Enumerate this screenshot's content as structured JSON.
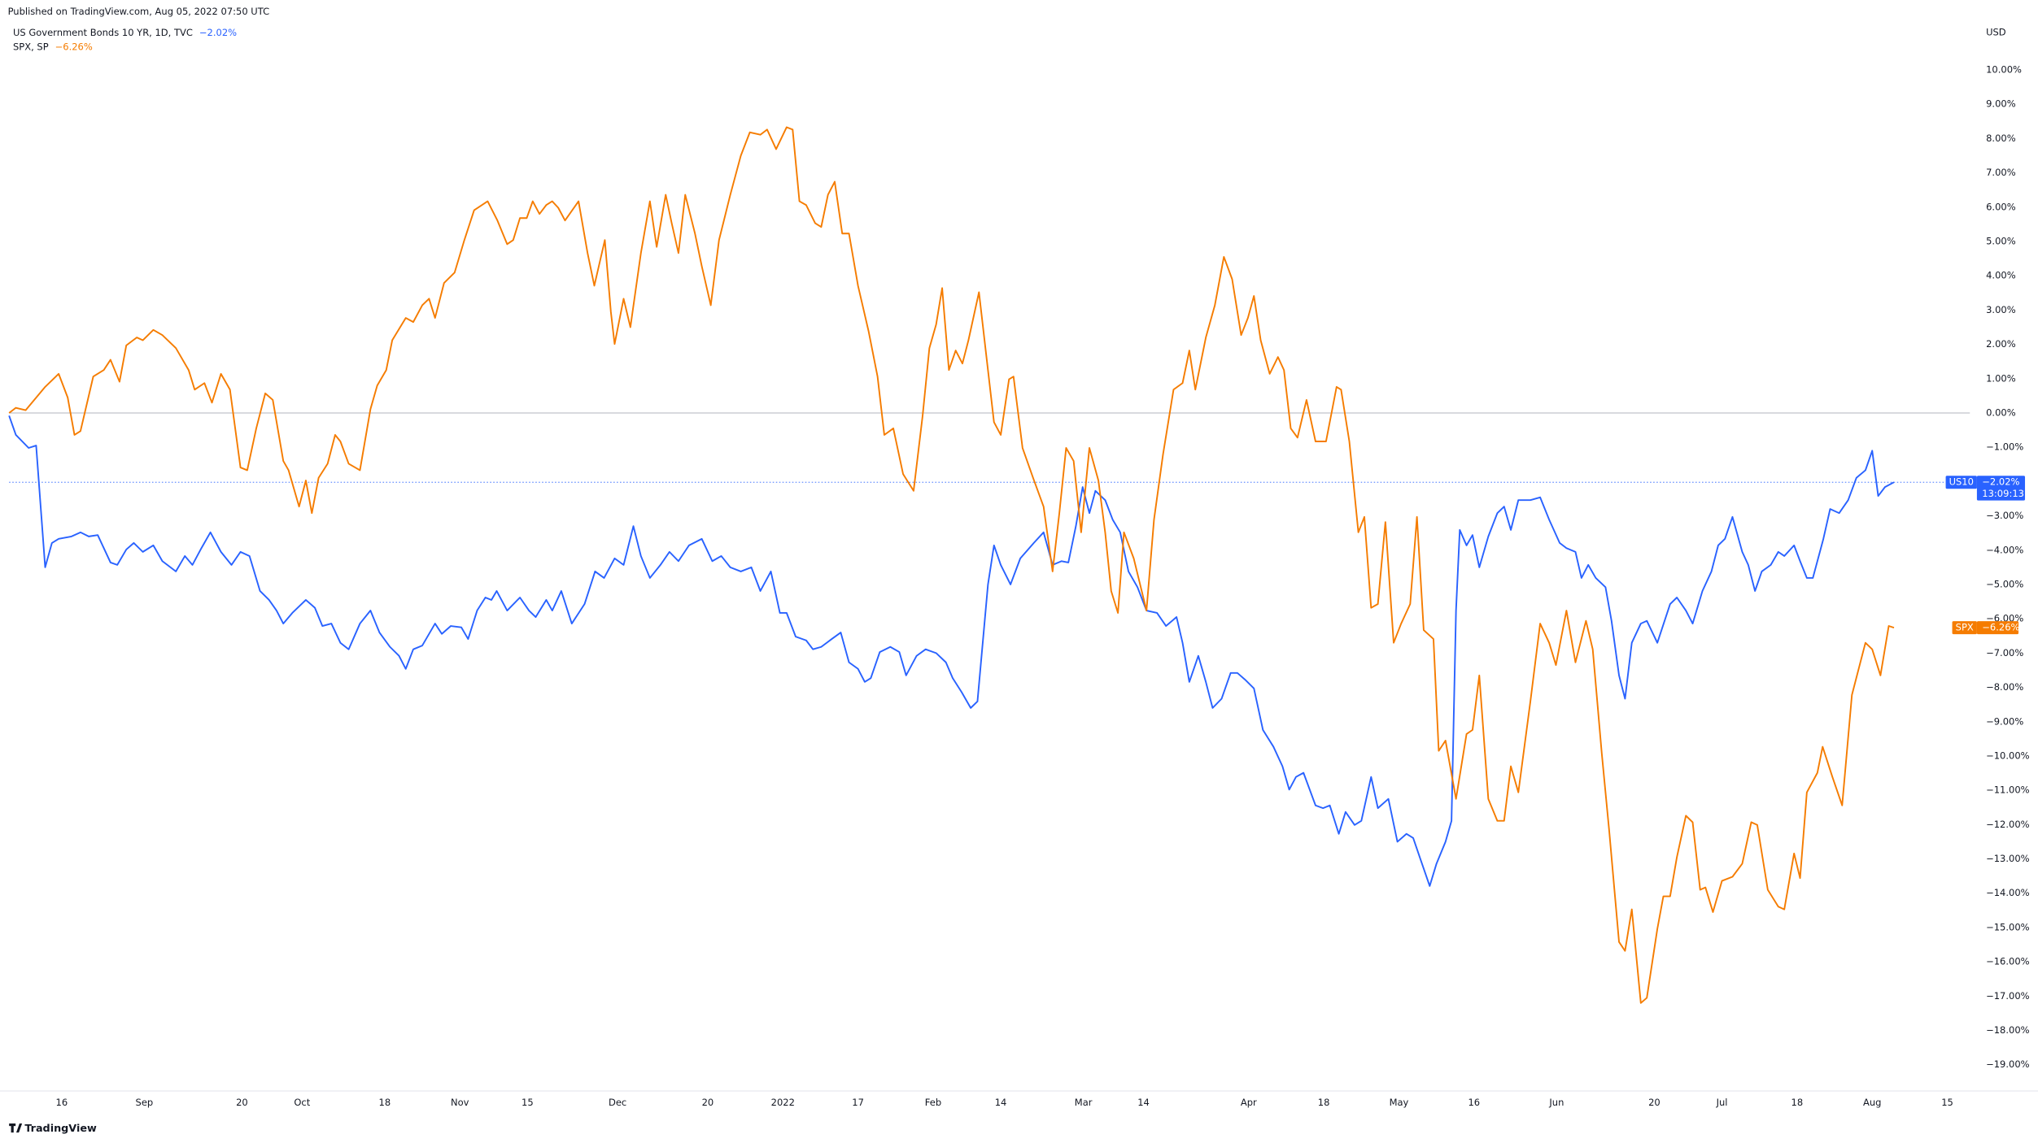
{
  "header": "Published on TradingView.com, Aug 05, 2022 07:50 UTC",
  "footer": "TradingView",
  "chart_data": {
    "type": "line",
    "y_axis_label": "USD",
    "xlim": [
      0,
      261
    ],
    "ylim": [
      -19.5,
      10.9
    ],
    "grid": false,
    "zero_line": true,
    "xticks": [
      {
        "value": 7,
        "label": "16"
      },
      {
        "value": 18,
        "label": "Sep"
      },
      {
        "value": 31,
        "label": "20"
      },
      {
        "value": 39,
        "label": "Oct"
      },
      {
        "value": 50,
        "label": "18"
      },
      {
        "value": 60,
        "label": "Nov"
      },
      {
        "value": 69,
        "label": "15"
      },
      {
        "value": 81,
        "label": "Dec"
      },
      {
        "value": 93,
        "label": "20"
      },
      {
        "value": 103,
        "label": "2022"
      },
      {
        "value": 113,
        "label": "17"
      },
      {
        "value": 123,
        "label": "Feb"
      },
      {
        "value": 132,
        "label": "14"
      },
      {
        "value": 143,
        "label": "Mar"
      },
      {
        "value": 151,
        "label": "14"
      },
      {
        "value": 165,
        "label": "Apr"
      },
      {
        "value": 175,
        "label": "18"
      },
      {
        "value": 185,
        "label": "May"
      },
      {
        "value": 195,
        "label": "16"
      },
      {
        "value": 206,
        "label": "Jun"
      },
      {
        "value": 219,
        "label": "20"
      },
      {
        "value": 228,
        "label": "Jul"
      },
      {
        "value": 238,
        "label": "18"
      },
      {
        "value": 248,
        "label": "Aug"
      },
      {
        "value": 258,
        "label": "15"
      }
    ],
    "yticks": [
      {
        "value": 10,
        "label": "10.00%"
      },
      {
        "value": 9,
        "label": "9.00%"
      },
      {
        "value": 8,
        "label": "8.00%"
      },
      {
        "value": 7,
        "label": "7.00%"
      },
      {
        "value": 6,
        "label": "6.00%"
      },
      {
        "value": 5,
        "label": "5.00%"
      },
      {
        "value": 4,
        "label": "4.00%"
      },
      {
        "value": 3,
        "label": "3.00%"
      },
      {
        "value": 2,
        "label": "2.00%"
      },
      {
        "value": 1,
        "label": "1.00%"
      },
      {
        "value": 0,
        "label": "0.00%"
      },
      {
        "value": -1,
        "label": "−1.00%"
      },
      {
        "value": -2,
        "label": "−2.00%"
      },
      {
        "value": -3,
        "label": "−3.00%"
      },
      {
        "value": -4,
        "label": "−4.00%"
      },
      {
        "value": -5,
        "label": "−5.00%"
      },
      {
        "value": -6,
        "label": "−6.00%"
      },
      {
        "value": -7,
        "label": "−7.00%"
      },
      {
        "value": -8,
        "label": "−8.00%"
      },
      {
        "value": -9,
        "label": "−9.00%"
      },
      {
        "value": -10,
        "label": "−10.00%"
      },
      {
        "value": -11,
        "label": "−11.00%"
      },
      {
        "value": -12,
        "label": "−12.00%"
      },
      {
        "value": -13,
        "label": "−13.00%"
      },
      {
        "value": -14,
        "label": "−14.00%"
      },
      {
        "value": -15,
        "label": "−15.00%"
      },
      {
        "value": -16,
        "label": "−16.00%"
      },
      {
        "value": -17,
        "label": "−17.00%"
      },
      {
        "value": -18,
        "label": "−18.00%"
      },
      {
        "value": -19,
        "label": "−19.00%"
      }
    ],
    "series": [
      {
        "name": "US Government Bonds 10 YR, 1D, TVC",
        "symbol": "US10",
        "change": "−2.02%",
        "last_label": "−2.02%",
        "countdown": "13:09:13",
        "color": "#2962ff",
        "last_line": true,
        "x": [
          0,
          0.9,
          2.6,
          3.6,
          4.8,
          5.7,
          6.6,
          8.3,
          9.5,
          10.6,
          11.8,
          13.5,
          14.4,
          15.6,
          16.6,
          17.8,
          19.2,
          20.4,
          22.2,
          23.4,
          24.4,
          25.6,
          26.8,
          28.2,
          29.6,
          30.8,
          32,
          33.4,
          34.6,
          35.6,
          36.5,
          37.7,
          39.5,
          40.7,
          41.7,
          42.9,
          44.1,
          45.2,
          46.7,
          48.1,
          49.3,
          50.7,
          51.9,
          52.8,
          53.8,
          55,
          56.7,
          57.6,
          58.8,
          60.2,
          61.1,
          62.3,
          63.4,
          64.2,
          64.9,
          66.3,
          68,
          69.2,
          70.1,
          71.5,
          72.3,
          73.5,
          74.9,
          76.6,
          78,
          79.2,
          80.6,
          81.8,
          83.1,
          84.1,
          85.3,
          86.7,
          87.9,
          89.1,
          90.5,
          92.2,
          93.6,
          94.8,
          96,
          97.4,
          98.8,
          100,
          101.4,
          102.6,
          103.5,
          104.7,
          106.1,
          107,
          108.1,
          109.5,
          110.7,
          111.8,
          113,
          113.9,
          114.7,
          115.9,
          117.3,
          118.5,
          119.4,
          120.8,
          122,
          123.4,
          124.7,
          125.6,
          126.8,
          128,
          128.9,
          130.3,
          131.1,
          132,
          133.3,
          134.6,
          136.4,
          137.7,
          138.9,
          140.1,
          141,
          142,
          142.9,
          143.8,
          144.6,
          145.9,
          146.9,
          147.9,
          149,
          150.2,
          151.4,
          152.8,
          154,
          155.4,
          156.2,
          157.1,
          158.3,
          159.3,
          160.2,
          161.4,
          162.6,
          163.5,
          164.5,
          165.7,
          166.9,
          168.3,
          169.5,
          170.4,
          171.3,
          172.3,
          173.9,
          174.9,
          175.8,
          177,
          177.9,
          179.1,
          180,
          181.3,
          182.2,
          183.6,
          184.8,
          186,
          186.9,
          187.9,
          189.1,
          190,
          191.2,
          192,
          192.6,
          193.1,
          194,
          194.8,
          195.7,
          196.9,
          198.1,
          199,
          199.9,
          200.9,
          202.5,
          203.8,
          205,
          206.4,
          207.3,
          208.5,
          209.3,
          210.2,
          211.2,
          212.5,
          213.3,
          214.3,
          215.1,
          216,
          217.2,
          218,
          219.4,
          221.1,
          222,
          223.2,
          224.1,
          225.4,
          226.6,
          227.5,
          228.4,
          229.4,
          230.7,
          231.5,
          232.4,
          233.3,
          234.5,
          235.5,
          236.3,
          237.6,
          238.4,
          239.3,
          240.1,
          241.5,
          242.4,
          243.6,
          244.8,
          245.9,
          247.1,
          248,
          248.8,
          249.7,
          250.9
        ],
        "values": [
          -0.08,
          -0.64,
          -1.02,
          -0.95,
          -4.5,
          -3.79,
          -3.67,
          -3.6,
          -3.48,
          -3.6,
          -3.56,
          -4.36,
          -4.43,
          -3.98,
          -3.79,
          -4.05,
          -3.86,
          -4.32,
          -4.62,
          -4.17,
          -4.43,
          -3.94,
          -3.48,
          -4.05,
          -4.43,
          -4.05,
          -4.17,
          -5.19,
          -5.45,
          -5.76,
          -6.14,
          -5.83,
          -5.45,
          -5.68,
          -6.21,
          -6.14,
          -6.7,
          -6.89,
          -6.14,
          -5.76,
          -6.4,
          -6.82,
          -7.08,
          -7.46,
          -6.89,
          -6.78,
          -6.14,
          -6.44,
          -6.21,
          -6.25,
          -6.59,
          -5.76,
          -5.38,
          -5.45,
          -5.19,
          -5.76,
          -5.38,
          -5.76,
          -5.95,
          -5.45,
          -5.76,
          -5.19,
          -6.14,
          -5.57,
          -4.62,
          -4.81,
          -4.24,
          -4.43,
          -3.3,
          -4.17,
          -4.81,
          -4.43,
          -4.05,
          -4.32,
          -3.86,
          -3.67,
          -4.32,
          -4.17,
          -4.5,
          -4.62,
          -4.5,
          -5.19,
          -4.62,
          -5.83,
          -5.83,
          -6.52,
          -6.63,
          -6.89,
          -6.82,
          -6.59,
          -6.4,
          -7.27,
          -7.46,
          -7.84,
          -7.73,
          -6.97,
          -6.82,
          -6.97,
          -7.65,
          -7.08,
          -6.89,
          -7,
          -7.27,
          -7.73,
          -8.14,
          -8.6,
          -8.41,
          -5,
          -3.86,
          -4.43,
          -5,
          -4.24,
          -3.79,
          -3.48,
          -4.43,
          -4.32,
          -4.36,
          -3.3,
          -2.16,
          -2.92,
          -2.27,
          -2.54,
          -3.11,
          -3.48,
          -4.62,
          -5.08,
          -5.76,
          -5.83,
          -6.21,
          -5.95,
          -6.7,
          -7.84,
          -7.08,
          -7.84,
          -8.6,
          -8.33,
          -7.58,
          -7.58,
          -7.77,
          -8.03,
          -9.24,
          -9.73,
          -10.3,
          -10.98,
          -10.61,
          -10.49,
          -11.44,
          -11.52,
          -11.44,
          -12.27,
          -11.63,
          -12.01,
          -11.89,
          -10.61,
          -11.52,
          -11.25,
          -12.5,
          -12.27,
          -12.39,
          -13.03,
          -13.79,
          -13.14,
          -12.5,
          -11.89,
          -5.76,
          -3.41,
          -3.86,
          -3.56,
          -4.5,
          -3.6,
          -2.92,
          -2.73,
          -3.41,
          -2.54,
          -2.54,
          -2.46,
          -3.11,
          -3.79,
          -3.94,
          -4.05,
          -4.81,
          -4.43,
          -4.81,
          -5.08,
          -6.06,
          -7.65,
          -8.33,
          -6.7,
          -6.14,
          -6.06,
          -6.7,
          -5.57,
          -5.38,
          -5.76,
          -6.14,
          -5.19,
          -4.62,
          -3.86,
          -3.67,
          -3.03,
          -4.05,
          -4.43,
          -5.19,
          -4.62,
          -4.43,
          -4.05,
          -4.17,
          -3.86,
          -4.32,
          -4.81,
          -4.81,
          -3.67,
          -2.8,
          -2.92,
          -2.54,
          -1.89,
          -1.67,
          -1.1,
          -2.42,
          -2.16,
          -2.02
        ]
      },
      {
        "name": "SPX, SP",
        "symbol": "SPX",
        "change": "−6.26%",
        "last_label": "−6.26%",
        "color": "#f57c00",
        "last_line": false,
        "x": [
          0,
          0.9,
          2.2,
          4.8,
          6.6,
          7.8,
          8.7,
          9.5,
          11.2,
          12.6,
          13.5,
          14.7,
          15.6,
          17,
          17.8,
          19.2,
          20.4,
          22.2,
          23.9,
          24.7,
          26,
          27,
          28.2,
          29.4,
          30.8,
          31.7,
          32.9,
          34.1,
          35.1,
          36.5,
          37.2,
          38.6,
          39.5,
          40.3,
          41.2,
          42.4,
          43.4,
          44.1,
          45.2,
          46.7,
          48.1,
          49,
          50.2,
          51,
          52.8,
          53.8,
          55,
          55.9,
          56.7,
          57.9,
          59.3,
          60.6,
          61.9,
          63.7,
          65,
          66.3,
          67.1,
          68,
          68.9,
          69.7,
          70.6,
          71.5,
          72.3,
          73.1,
          74,
          75.8,
          77,
          77.9,
          79.3,
          80.1,
          80.6,
          81.8,
          82.7,
          84.1,
          85.3,
          86.2,
          87.4,
          88.2,
          89.1,
          90,
          91.3,
          92.2,
          93.4,
          94.5,
          96,
          97.4,
          98.6,
          100,
          100.9,
          102.1,
          103.5,
          104.3,
          105.2,
          106.1,
          107.3,
          108.1,
          109,
          109.9,
          110.9,
          111.8,
          113,
          114.4,
          115.6,
          116.5,
          117.7,
          119,
          120.4,
          121.6,
          122.5,
          123.4,
          124.2,
          125.1,
          126,
          126.9,
          127.7,
          129.1,
          130.3,
          131.1,
          132,
          133.1,
          133.7,
          134.9,
          136.3,
          137.7,
          138.9,
          139.8,
          140.7,
          141.7,
          142.7,
          143.8,
          145,
          145.9,
          146.7,
          147.6,
          148.4,
          149.7,
          151.4,
          152.4,
          153.6,
          155,
          156.2,
          157.1,
          157.9,
          159.3,
          160.5,
          161.7,
          162.8,
          164,
          164.9,
          165.7,
          166.6,
          167.8,
          168.9,
          169.7,
          170.6,
          171.5,
          172.7,
          173.9,
          175.3,
          176.7,
          177.3,
          178.4,
          179.6,
          180.4,
          181.3,
          182.2,
          183.2,
          184.3,
          185.3,
          186.5,
          187.4,
          188.3,
          189.6,
          190.3,
          191.2,
          192.6,
          194,
          194.8,
          195.7,
          196.9,
          198.1,
          199,
          199.9,
          200.9,
          202.5,
          203.8,
          205,
          205.9,
          207.3,
          208.5,
          209.9,
          210.8,
          212,
          213,
          214.3,
          215.1,
          216,
          217.2,
          218,
          219.4,
          220.2,
          221.1,
          222,
          223.2,
          224.1,
          225.1,
          225.8,
          226.8,
          228,
          229.4,
          230.7,
          231.9,
          232.7,
          234.1,
          235.5,
          236.3,
          237.6,
          238.4,
          239.3,
          240.7,
          241.4,
          242.7,
          244,
          245.3,
          247.1,
          248,
          249.1,
          250.2,
          250.9
        ],
        "values": [
          0,
          0.15,
          0.08,
          0.76,
          1.14,
          0.45,
          -0.64,
          -0.53,
          1.06,
          1.25,
          1.55,
          0.91,
          1.97,
          2.2,
          2.12,
          2.42,
          2.27,
          1.89,
          1.25,
          0.68,
          0.87,
          0.3,
          1.14,
          0.68,
          -1.59,
          -1.67,
          -0.45,
          0.57,
          0.38,
          -1.4,
          -1.67,
          -2.73,
          -1.97,
          -2.92,
          -1.89,
          -1.48,
          -0.64,
          -0.83,
          -1.48,
          -1.67,
          0.11,
          0.8,
          1.25,
          2.12,
          2.77,
          2.65,
          3.14,
          3.33,
          2.77,
          3.79,
          4.09,
          5.04,
          5.91,
          6.17,
          5.61,
          4.92,
          5.04,
          5.68,
          5.68,
          6.17,
          5.8,
          6.06,
          6.17,
          5.98,
          5.61,
          6.17,
          4.66,
          3.71,
          5.04,
          2.95,
          2.01,
          3.33,
          2.5,
          4.66,
          6.17,
          4.84,
          6.36,
          5.53,
          4.66,
          6.36,
          5.23,
          4.28,
          3.14,
          5.04,
          6.36,
          7.5,
          8.18,
          8.11,
          8.26,
          7.69,
          8.33,
          8.26,
          6.17,
          6.06,
          5.53,
          5.42,
          6.36,
          6.74,
          5.23,
          5.23,
          3.71,
          2.39,
          1.06,
          -0.64,
          -0.45,
          -1.78,
          -2.27,
          -0.08,
          1.89,
          2.58,
          3.64,
          1.25,
          1.82,
          1.44,
          2.12,
          3.52,
          1.25,
          -0.27,
          -0.64,
          0.98,
          1.06,
          -1.02,
          -1.89,
          -2.73,
          -4.62,
          -2.92,
          -1.02,
          -1.4,
          -3.48,
          -1.02,
          -1.97,
          -3.48,
          -5.19,
          -5.83,
          -3.48,
          -4.24,
          -5.76,
          -3.11,
          -1.21,
          0.68,
          0.87,
          1.82,
          0.68,
          2.2,
          3.14,
          4.55,
          3.9,
          2.27,
          2.77,
          3.41,
          2.12,
          1.14,
          1.63,
          1.25,
          -0.45,
          -0.72,
          0.38,
          -0.83,
          -0.83,
          0.76,
          0.68,
          -0.83,
          -3.48,
          -3.03,
          -5.68,
          -5.57,
          -3.18,
          -6.7,
          -6.14,
          -5.57,
          -3.03,
          -6.33,
          -6.59,
          -9.85,
          -9.55,
          -11.25,
          -9.36,
          -9.24,
          -7.65,
          -11.25,
          -11.89,
          -11.89,
          -10.3,
          -11.06,
          -8.41,
          -6.14,
          -6.7,
          -7.35,
          -5.76,
          -7.27,
          -6.06,
          -6.89,
          -9.92,
          -12.2,
          -15.42,
          -15.68,
          -14.47,
          -17.2,
          -17.05,
          -15.04,
          -14.09,
          -14.09,
          -12.95,
          -11.74,
          -11.93,
          -13.9,
          -13.83,
          -14.55,
          -13.64,
          -13.52,
          -13.14,
          -11.93,
          -12.01,
          -13.9,
          -14.39,
          -14.47,
          -12.84,
          -13.56,
          -11.06,
          -10.49,
          -9.73,
          -10.61,
          -11.44,
          -8.22,
          -6.7,
          -6.89,
          -7.65,
          -6.21,
          -6.26
        ]
      }
    ]
  }
}
